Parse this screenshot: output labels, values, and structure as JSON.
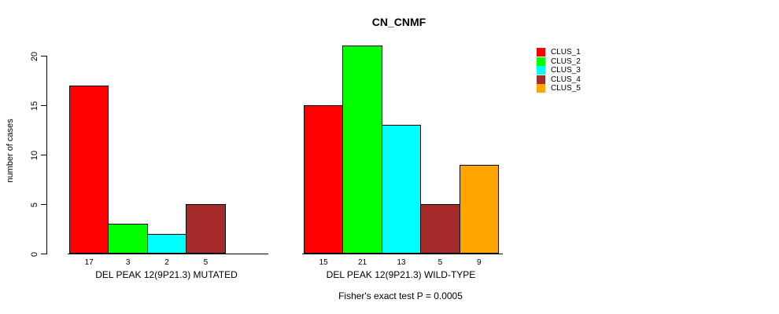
{
  "chart_data": {
    "type": "bar",
    "title": "CN_CNMF",
    "ylabel": "number of cases",
    "xlabel": "",
    "caption": "Fisher's exact test P = 0.0005",
    "ylim": [
      0,
      20
    ],
    "yticks": [
      0,
      5,
      10,
      15,
      20
    ],
    "grid": false,
    "legend_position": "right-top",
    "categories": [
      "DEL PEAK 12(9P21.3) MUTATED",
      "DEL PEAK 12(9P21.3) WILD-TYPE"
    ],
    "series": [
      {
        "name": "CLUS_1",
        "color": "#FF0000",
        "values": [
          17,
          15
        ]
      },
      {
        "name": "CLUS_2",
        "color": "#00FF00",
        "values": [
          3,
          21
        ]
      },
      {
        "name": "CLUS_3",
        "color": "#00FFFF",
        "values": [
          2,
          13
        ]
      },
      {
        "name": "CLUS_4",
        "color": "#A52A2A",
        "values": [
          5,
          5
        ]
      },
      {
        "name": "CLUS_5",
        "color": "#FFA500",
        "values": [
          0,
          9
        ]
      }
    ],
    "bar_value_labels": [
      [
        17,
        3,
        2,
        5
      ],
      [
        15,
        21,
        13,
        5,
        9
      ]
    ],
    "zero_bars_unlabeled": true,
    "colors": {
      "axis": "#000000",
      "background": "#FFFFFF",
      "text": "#000000"
    }
  }
}
